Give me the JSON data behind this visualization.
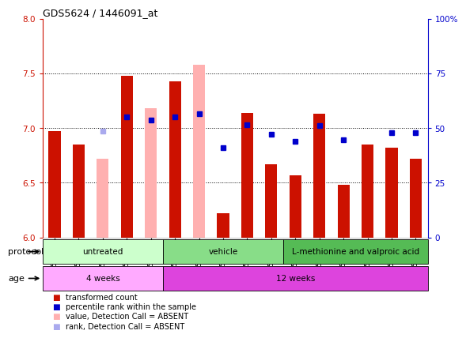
{
  "title": "GDS5624 / 1446091_at",
  "samples": [
    "GSM1520965",
    "GSM1520966",
    "GSM1520967",
    "GSM1520968",
    "GSM1520969",
    "GSM1520970",
    "GSM1520971",
    "GSM1520972",
    "GSM1520973",
    "GSM1520974",
    "GSM1520975",
    "GSM1520976",
    "GSM1520977",
    "GSM1520978",
    "GSM1520979",
    "GSM1520980"
  ],
  "red_values": [
    6.97,
    6.85,
    null,
    7.48,
    null,
    7.43,
    null,
    6.22,
    7.14,
    6.67,
    6.57,
    7.13,
    6.48,
    6.85,
    6.82,
    6.72
  ],
  "pink_values": [
    null,
    null,
    6.72,
    null,
    7.18,
    null,
    7.58,
    null,
    null,
    null,
    null,
    null,
    null,
    null,
    null,
    null
  ],
  "blue_values": [
    null,
    null,
    null,
    7.1,
    7.07,
    7.1,
    7.13,
    6.82,
    7.03,
    6.94,
    6.88,
    7.02,
    6.89,
    null,
    6.96,
    6.96
  ],
  "lightblue_values": [
    null,
    null,
    6.97,
    null,
    null,
    null,
    null,
    null,
    null,
    null,
    null,
    null,
    null,
    null,
    null,
    null
  ],
  "ylim": [
    6.0,
    8.0
  ],
  "yticks_left": [
    6.0,
    6.5,
    7.0,
    7.5,
    8.0
  ],
  "yticks_right": [
    0,
    25,
    50,
    75,
    100
  ],
  "red_color": "#cc1100",
  "pink_color": "#ffb0b0",
  "blue_color": "#0000cc",
  "lightblue_color": "#aaaaee",
  "protocol_groups": [
    {
      "label": "untreated",
      "start": 0,
      "end": 4,
      "color": "#ccffcc"
    },
    {
      "label": "vehicle",
      "start": 5,
      "end": 9,
      "color": "#88dd88"
    },
    {
      "label": "L-methionine and valproic acid",
      "start": 10,
      "end": 15,
      "color": "#55bb55"
    }
  ],
  "age_groups": [
    {
      "label": "4 weeks",
      "start": 0,
      "end": 4,
      "color": "#ffaaff"
    },
    {
      "label": "12 weeks",
      "start": 5,
      "end": 15,
      "color": "#dd44dd"
    }
  ],
  "bar_width": 0.5,
  "base_value": 6.0,
  "bg_color": "#ffffff"
}
